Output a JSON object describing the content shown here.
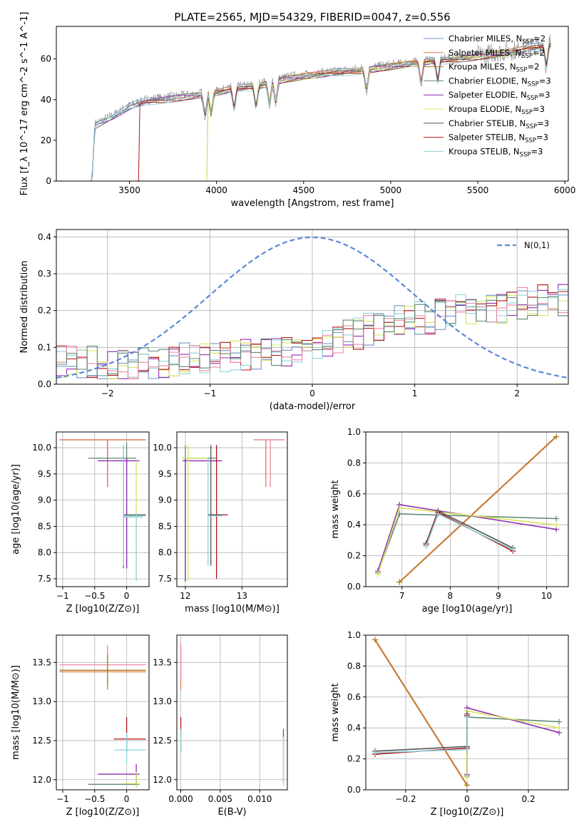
{
  "title": "PLATE=2565, MJD=54329, FIBERID=0047, z=0.556",
  "colors": {
    "Chabrier MILES": "#6f95c6",
    "Salpeter MILES": "#e07a52",
    "Kroupa MILES": "#b07d18",
    "Chabrier ELODIE": "#5e8a70",
    "Salpeter ELODIE": "#8f2bb0",
    "Kroupa ELODIE": "#d7e45c",
    "Chabrier STELIB": "#555555",
    "Salpeter STELIB": "#b31212",
    "Kroupa STELIB": "#8fd3dc",
    "pink": "#e98aa8",
    "normal": "#5b88d6"
  },
  "legend_entries": [
    "Chabrier MILES, N_SSP=2",
    "Salpeter MILES, N_SSP=2",
    "Kroupa MILES, N_SSP=2",
    "Chabrier ELODIE, N_SSP=3",
    "Salpeter ELODIE, N_SSP=3",
    "Kroupa ELODIE, N_SSP=3",
    "Chabrier STELIB, N_SSP=3",
    "Salpeter STELIB, N_SSP=3",
    "Kroupa STELIB, N_SSP=3"
  ],
  "chart_data": [
    {
      "id": "spectrum",
      "type": "line",
      "xlabel": "wavelength [Angstrom, rest frame]",
      "ylabel": "Flux [f_λ 10^-17 erg cm^-2 s^-1 A^-1]",
      "xlim": [
        3080,
        6020
      ],
      "ylim": [
        0,
        76
      ],
      "xticks": [
        3500,
        4000,
        4500,
        5000,
        5500,
        6000
      ],
      "yticks": [
        0,
        20,
        40,
        60
      ],
      "grid": false,
      "legend": "upper-right",
      "data_curve": {
        "x": [
          3220,
          3285,
          3300,
          3400,
          3500,
          3600,
          3700,
          3800,
          3900,
          4000,
          4100,
          4200,
          4300,
          4400,
          4500,
          4600,
          4700,
          4800,
          4900,
          5000,
          5100,
          5200,
          5300,
          5400,
          5500,
          5600,
          5700,
          5800,
          5920
        ],
        "y": [
          0,
          0,
          28,
          32,
          37,
          40,
          41,
          42,
          43,
          44,
          46,
          47,
          49,
          51,
          52,
          53,
          54,
          55,
          56,
          57,
          58,
          59,
          60,
          61,
          62,
          63,
          64,
          66,
          68
        ]
      },
      "model_starts": {
        "MILES_steps": [
          3555,
          3950
        ],
        "ELODIE_start": 3285,
        "STELIB_start": 3220
      }
    },
    {
      "id": "residuals",
      "type": "histogram",
      "xlabel": "(data-model)/error",
      "ylabel": "Normed distribution",
      "xlim": [
        -2.5,
        2.5
      ],
      "ylim": [
        0,
        0.42
      ],
      "xticks": [
        -2,
        -1,
        0,
        1,
        2
      ],
      "yticks": [
        0.0,
        0.1,
        0.2,
        0.3,
        0.4
      ],
      "grid": true,
      "legend_label": "N(0,1)",
      "legend": "upper-right",
      "bin_width": 0.1,
      "bin_start": -2.5,
      "trend": [
        0.06,
        0.06,
        0.06,
        0.06,
        0.05,
        0.05,
        0.05,
        0.05,
        0.06,
        0.06,
        0.06,
        0.06,
        0.07,
        0.07,
        0.07,
        0.07,
        0.07,
        0.08,
        0.08,
        0.08,
        0.08,
        0.09,
        0.09,
        0.1,
        0.1,
        0.11,
        0.11,
        0.12,
        0.13,
        0.14,
        0.15,
        0.16,
        0.17,
        0.17,
        0.18,
        0.18,
        0.18,
        0.19,
        0.19,
        0.2,
        0.2,
        0.21,
        0.21,
        0.21,
        0.22,
        0.22,
        0.22,
        0.23,
        0.23,
        0.23
      ]
    },
    {
      "id": "age-Z",
      "type": "errorbar",
      "xlabel": "Z [log10(Z/Z⊙)]",
      "ylabel": "age [log10(age/yr)]",
      "xlim": [
        -1.1,
        0.35
      ],
      "ylim": [
        7.35,
        10.3
      ],
      "xticks": [
        -1.0,
        -0.5,
        0.0
      ],
      "yticks": [
        7.5,
        8.0,
        8.5,
        9.0,
        9.5,
        10.0
      ],
      "grid": true
    },
    {
      "id": "age-mass",
      "type": "errorbar",
      "xlabel": "mass [log10(M/M⊙)]",
      "ylabel": "",
      "xlim": [
        11.85,
        13.8
      ],
      "ylim": [
        7.35,
        10.3
      ],
      "xticks": [
        12,
        13
      ],
      "yticks": [
        7.5,
        8.0,
        8.5,
        9.0,
        9.5,
        10.0
      ],
      "grid": true
    },
    {
      "id": "weight-age",
      "type": "line",
      "xlabel": "age [log10(age/yr)]",
      "ylabel": "mass weight",
      "xlim": [
        6.25,
        10.45
      ],
      "ylim": [
        0,
        1.0
      ],
      "xticks": [
        6,
        7,
        8,
        9,
        10
      ],
      "yticks": [
        0.0,
        0.2,
        0.4,
        0.6,
        0.8,
        1.0
      ],
      "grid": true
    },
    {
      "id": "mass-Z",
      "type": "errorbar",
      "xlabel": "Z [log10(Z/Z⊙)]",
      "ylabel": "mass [log10(M/M⊙)]",
      "xlim": [
        -1.1,
        0.35
      ],
      "ylim": [
        11.87,
        13.85
      ],
      "xticks": [
        -1.0,
        -0.5,
        0.0
      ],
      "yticks": [
        12.0,
        12.5,
        13.0,
        13.5
      ],
      "grid": true
    },
    {
      "id": "mass-EBV",
      "type": "errorbar",
      "xlabel": "E(B-V)",
      "ylabel": "",
      "xlim": [
        -0.0005,
        0.0135
      ],
      "ylim": [
        11.87,
        13.85
      ],
      "xticks": [
        0.0,
        0.005,
        0.01
      ],
      "xticklabels": [
        "0.000",
        "0.005",
        "0.010"
      ],
      "yticks": [
        12.0,
        12.5,
        13.0,
        13.5
      ],
      "grid": true
    },
    {
      "id": "weight-Z",
      "type": "line",
      "xlabel": "Z [log10(Z/Z⊙)]",
      "ylabel": "mass weight",
      "xlim": [
        -0.33,
        0.33
      ],
      "ylim": [
        0,
        1.0
      ],
      "xticks": [
        -0.2,
        0.0,
        0.2
      ],
      "yticks": [
        0.0,
        0.2,
        0.4,
        0.6,
        0.8,
        1.0
      ],
      "grid": true
    }
  ]
}
